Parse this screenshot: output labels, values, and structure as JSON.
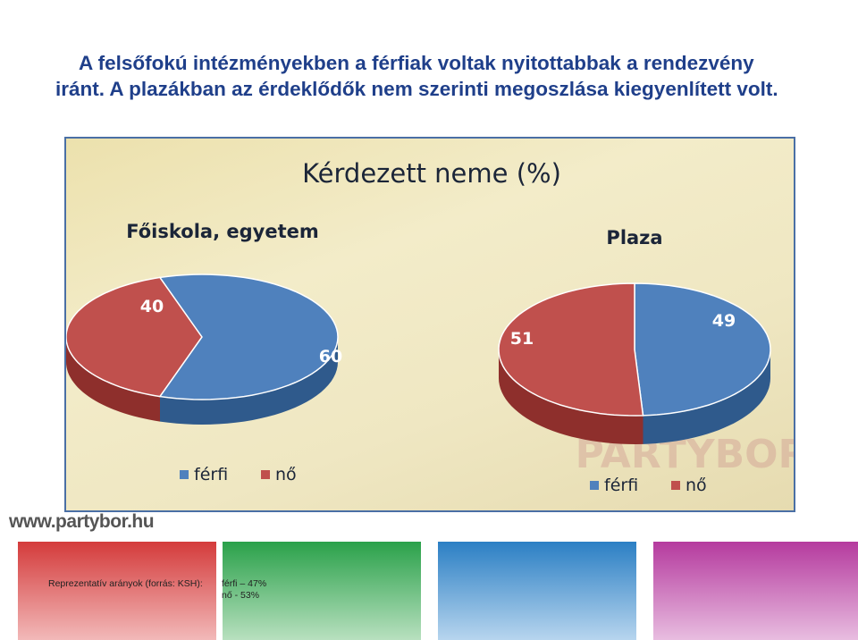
{
  "slide": {
    "title_line1": "A felsőfokú intézményekben a férfiak voltak nyitottabbak a rendezvény",
    "title_line2": "iránt. A plazákban az érdeklődők nem szerinti megoszlása kiegyenlített volt.",
    "site_url": "www.partybor.hu",
    "footnote": "Reprezentatív arányok (forrás: KSH):",
    "footnote_stats": [
      "férfi – 47%",
      "nő - 53%"
    ],
    "watermark": "PARTYBOR"
  },
  "colors": {
    "title": "#1f3f8a",
    "male": "#4f81bd",
    "female": "#c0504d",
    "frame_border": "#4a6fa5"
  },
  "chart_data": {
    "type": "pie",
    "title": "Kérdezett neme (%)",
    "charts": [
      {
        "title": "Főiskola, egyetem",
        "slices": [
          {
            "label": "férfi",
            "value": 60
          },
          {
            "label": "nő",
            "value": 40
          }
        ],
        "legend": [
          "férfi",
          "nő"
        ]
      },
      {
        "title": "Plaza",
        "slices": [
          {
            "label": "férfi",
            "value": 49
          },
          {
            "label": "nő",
            "value": 51
          }
        ],
        "legend": [
          "férfi",
          "nő"
        ]
      }
    ]
  }
}
